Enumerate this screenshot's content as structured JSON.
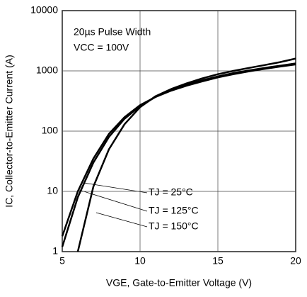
{
  "chart_data": {
    "type": "line",
    "xlabel": "VGE, Gate-to-Emitter Voltage (V)",
    "ylabel": "IC, Collector-to-Emitter Current (A)",
    "annotations": [
      "20µs Pulse Width",
      "VCC = 100V"
    ],
    "x": [
      5,
      6,
      7,
      8,
      9,
      10,
      11,
      12,
      13,
      14,
      15,
      16,
      17,
      18,
      19,
      20
    ],
    "series": [
      {
        "name": "TJ = 25°C",
        "color": "#000000",
        "values": [
          null,
          1,
          12,
          50,
          130,
          250,
          380,
          500,
          620,
          750,
          880,
          1000,
          1120,
          1250,
          1400,
          1600
        ]
      },
      {
        "name": "TJ = 125°C",
        "color": "#000000",
        "values": [
          1.2,
          8,
          30,
          80,
          160,
          260,
          370,
          480,
          590,
          700,
          810,
          920,
          1020,
          1120,
          1220,
          1330
        ]
      },
      {
        "name": "TJ = 150°C",
        "color": "#000000",
        "values": [
          1.8,
          10,
          35,
          90,
          170,
          270,
          370,
          470,
          570,
          670,
          780,
          880,
          980,
          1080,
          1180,
          1280
        ]
      }
    ],
    "xlim": [
      5,
      20
    ],
    "xticks": [
      5,
      10,
      15,
      20
    ],
    "ylim": [
      1,
      10000
    ],
    "yticks": [
      1,
      10,
      100,
      1000,
      10000
    ],
    "ylog": true,
    "grid": true
  }
}
